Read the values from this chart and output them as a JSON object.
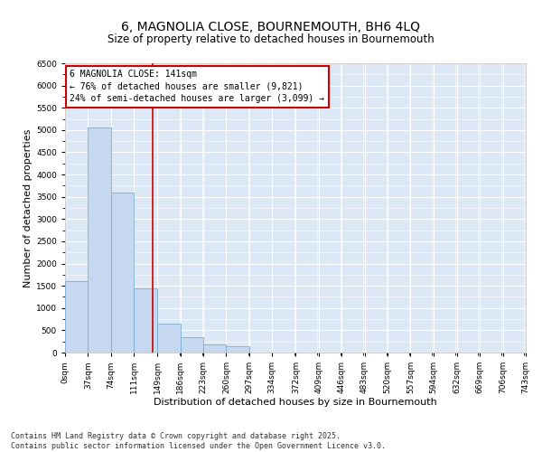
{
  "title_line1": "6, MAGNOLIA CLOSE, BOURNEMOUTH, BH6 4LQ",
  "title_line2": "Size of property relative to detached houses in Bournemouth",
  "xlabel": "Distribution of detached houses by size in Bournemouth",
  "ylabel": "Number of detached properties",
  "bar_color": "#c5d8ef",
  "bar_edge_color": "#7badd4",
  "background_color": "#dce8f5",
  "grid_color": "#ffffff",
  "annotation_text": "6 MAGNOLIA CLOSE: 141sqm\n← 76% of detached houses are smaller (9,821)\n24% of semi-detached houses are larger (3,099) →",
  "vline_x": 141,
  "vline_color": "#cc0000",
  "bin_edges": [
    0,
    37,
    74,
    111,
    149,
    186,
    223,
    260,
    297,
    334,
    372,
    409,
    446,
    483,
    520,
    557,
    594,
    632,
    669,
    706,
    743
  ],
  "bin_counts": [
    1600,
    5050,
    3600,
    1450,
    650,
    340,
    185,
    140,
    0,
    0,
    0,
    0,
    0,
    0,
    0,
    0,
    0,
    0,
    0,
    0
  ],
  "ylim": [
    0,
    6500
  ],
  "yticks": [
    0,
    500,
    1000,
    1500,
    2000,
    2500,
    3000,
    3500,
    4000,
    4500,
    5000,
    5500,
    6000,
    6500
  ],
  "xlim": [
    0,
    743
  ],
  "tick_labels": [
    "0sqm",
    "37sqm",
    "74sqm",
    "111sqm",
    "149sqm",
    "186sqm",
    "223sqm",
    "260sqm",
    "297sqm",
    "334sqm",
    "372sqm",
    "409sqm",
    "446sqm",
    "483sqm",
    "520sqm",
    "557sqm",
    "594sqm",
    "632sqm",
    "669sqm",
    "706sqm",
    "743sqm"
  ],
  "footnote": "Contains HM Land Registry data © Crown copyright and database right 2025.\nContains public sector information licensed under the Open Government Licence v3.0.",
  "title_fontsize": 10,
  "subtitle_fontsize": 8.5,
  "axis_label_fontsize": 8,
  "tick_fontsize": 6.5,
  "annotation_fontsize": 7,
  "footnote_fontsize": 6
}
